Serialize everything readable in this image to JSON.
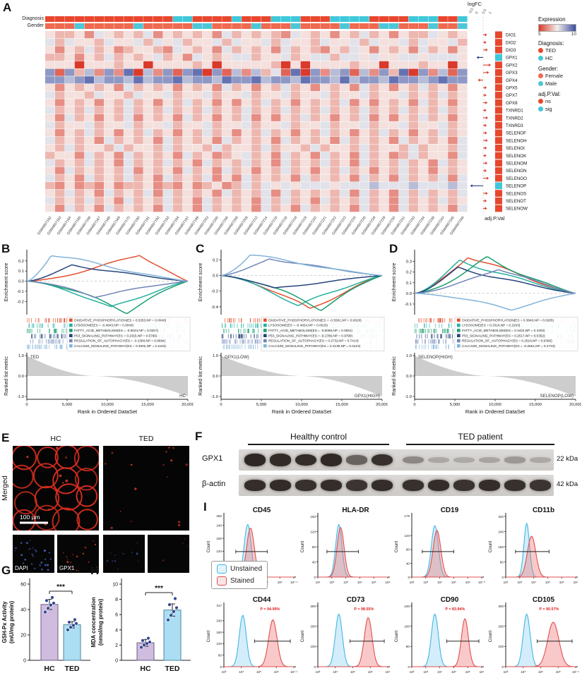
{
  "figure": {
    "labels": {
      "a": "A",
      "b": "B",
      "c": "C",
      "d": "D",
      "e": "E",
      "f": "F",
      "g": "G",
      "h": "H",
      "i": "I"
    }
  },
  "heatmap": {
    "annotation_rows": [
      "Diagnosis",
      "Gender"
    ],
    "samples": [
      "GSM4607162",
      "GSM4607163",
      "GSM4607164",
      "GSM4607165",
      "GSM4607166",
      "GSM4607167",
      "GSM4607168",
      "GSM4607169",
      "GSM4607170",
      "GSM4607190",
      "GSM4607191",
      "GSM4607192",
      "GSM4607193",
      "GSM4607194",
      "GSM4607197",
      "GSM4607199",
      "GSM4607203",
      "GSM4607205",
      "GSM4607206",
      "GSM4607208",
      "GSM4607209",
      "GSM4607213",
      "GSM4607214",
      "GSM4607215",
      "GSM4607216",
      "GSM4607218",
      "GSM4607219",
      "GSM4607220",
      "GSM4607221",
      "GSM4607222",
      "GSM4607223",
      "GSM4607225",
      "GSM4607226",
      "GSM4607228",
      "GSM4607229",
      "GSM4607230",
      "GSM4607231",
      "GSM4607233",
      "GSM4607234",
      "GSM4607238",
      "GSM4607243",
      "GSM4607245",
      "GSM4607246"
    ],
    "diagnosis": "TTTTTTTTTTTTTHHTTTTHTTTHHHTTTHHHHTTTTHHHTTH",
    "gender": "FFFMFFFFFMFFFFFMMFFFFMFFFMFFFFMFFFMMFFFMFFM",
    "genes": [
      "DIO1",
      "DIO2",
      "DIO3",
      "GPX1",
      "GPX2",
      "GPX3",
      "GPX4",
      "GPX5",
      "GPX7",
      "GPX8",
      "TXNRD1",
      "TXNRD2",
      "TXNRD3",
      "SELENOF",
      "SELENOH",
      "SELENOI",
      "SELENOK",
      "SELENOM",
      "SELENON",
      "SELENOO",
      "SELENOP",
      "SELENOS",
      "SELENOT",
      "SELENOW"
    ],
    "sig": [
      "ns",
      "ns",
      "ns",
      "sig",
      "ns",
      "ns",
      "ns",
      "ns",
      "ns",
      "ns",
      "ns",
      "ns",
      "ns",
      "ns",
      "ns",
      "ns",
      "ns",
      "ns",
      "ns",
      "ns",
      "sig",
      "ns",
      "ns",
      "ns"
    ],
    "matrix": [
      "5665745656475656574656567456575646575664565",
      "4645564554645465546455464556455464554645546",
      "5756465765567456574656574656756457565746575",
      "6657564656546574565446554654464454554454445",
      "5559555655955556595555569595555655955565595",
      "2826372719372821928373648192732837261927382",
      "2232132231322132231221322312231322312232122",
      "5756565746565756574657564657565746575646575",
      "4655645564554655465546554655465546554656465",
      "5756575646575646575756465756564757565746575",
      "4656465646564656465646564656465646564656465",
      "5746575647565746575647575646575647575646575",
      "4655465546554655465546554655465546554655465",
      "5756465756465756465756465756465756465756465",
      "4656574656574656574656574656574656574656574",
      "5646556465564655646556465564655646556465564",
      "6557465746565746576546574657465746576465574",
      "4656465746564657465646574656465746564657465",
      "5746565647565746574657564657564657564657565",
      "4657465646574656475746565746565746574656474",
      "6757675766576757657646454544454443444344434",
      "5646574656474656574656474656564746574646564",
      "4656465746564657465657464657465646574656465",
      "5746574656574657465657465746565746574656574"
    ],
    "logfc": [
      0.15,
      0.1,
      0.2,
      -0.35,
      0.45,
      0.3,
      -0.25,
      0.12,
      0.1,
      0.18,
      0.1,
      0.22,
      0.12,
      0.15,
      0.2,
      0.14,
      0.1,
      0.18,
      0.12,
      0.28,
      -0.85,
      0.2,
      0.12,
      0.15
    ],
    "logfc_title": "logFC",
    "logfc_ticks": [
      "-0.5",
      "0",
      "0.5",
      "1"
    ],
    "adj_label": "adj.P.Val",
    "colors": {
      "ted": "#e8472e",
      "hc": "#3fc8da",
      "female": "#ef6a50",
      "male": "#4cc7d8",
      "ns": "#e8472e",
      "sig": "#3fc8da"
    },
    "legend": {
      "expression_title": "Expression",
      "expression_ticks": [
        "5",
        "10"
      ],
      "diagnosis_title": "Diagnosis:",
      "diagnosis_items": [
        {
          "label": "TED"
        },
        {
          "label": "HC"
        }
      ],
      "gender_title": "Gender:",
      "gender_items": [
        {
          "label": "Female"
        },
        {
          "label": "Male"
        }
      ],
      "adj_title": "adj.P.Val:",
      "adj_items": [
        {
          "label": "ns"
        },
        {
          "label": "sig"
        }
      ]
    }
  },
  "gsea": {
    "ylabel_es": "Enrichment score",
    "ylabel_rank": "Ranked list metric",
    "xlabel": "Rank in Ordered DataSet",
    "xticks": [
      "0",
      "5,000",
      "10,000",
      "15,000",
      "20,000"
    ],
    "panels": [
      {
        "id": "B",
        "es_ticks": [
          "0.2",
          "0.1",
          "0.0",
          "-0.1",
          "-0.2"
        ],
        "es_range": [
          -0.33,
          0.31
        ],
        "rank_ticks": [
          "1.0",
          "0.0",
          "-1.0"
        ],
        "cross": 0.42,
        "pos_label": "TED",
        "neg_label": "HC",
        "series": [
          {
            "name": "OXIDATIVE_PHOSPHORYLATION",
            "es": "0.5353",
            "np": "0.0040",
            "color": "#e4502e",
            "peak": 0.27,
            "pos": 0.7
          },
          {
            "name": "LYSOSOME",
            "es": "-0.4843",
            "np": "0.0040",
            "color": "#24b0a0",
            "peak": -0.27,
            "pos": 0.52
          },
          {
            "name": "FATTY_ACID_METABOLISM",
            "es": "-0.5523",
            "np": "0.0257",
            "color": "#1a9e70",
            "peak": -0.3,
            "pos": 0.62
          },
          {
            "name": "P53_SIGNALING_PATHWAY",
            "es": "0.2315",
            "np": "0.5766",
            "color": "#27457d",
            "peak": 0.16,
            "pos": 0.28
          },
          {
            "name": "REGULATION_OF_AUTOPHAGY",
            "es": "-0.2369",
            "np": "0.8694",
            "color": "#7186b8",
            "peak": -0.15,
            "pos": 0.42
          },
          {
            "name": "CALCIUM_SIGNALING_PATHWAY",
            "es": "0.3002",
            "np": "0.1193",
            "color": "#82b4d8",
            "peak": 0.27,
            "pos": 0.15
          }
        ]
      },
      {
        "id": "C",
        "es_ticks": [
          "0.2",
          "0.0",
          "-0.2",
          "-0.4"
        ],
        "es_range": [
          -0.5,
          0.33
        ],
        "rank_ticks": [
          "1.0",
          "0.0",
          "-1.0"
        ],
        "cross": 0.5,
        "pos_label": "GPX1(LOW)",
        "neg_label": "GPX1(HIGH)",
        "series": [
          {
            "name": "OXIDATIVE_PHOSPHORYLATION",
            "es": "-0.5581",
            "np": "0.0020",
            "color": "#e4502e",
            "peak": -0.44,
            "pos": 0.55
          },
          {
            "name": "LYSOSOME",
            "es": "-0.4824",
            "np": "0.0020",
            "color": "#24b0a0",
            "peak": -0.39,
            "pos": 0.48
          },
          {
            "name": "FATTY_ACID_METABOLISM",
            "es": "-0.5069",
            "np": "0.0591",
            "color": "#1a9e70",
            "peak": -0.42,
            "pos": 0.62
          },
          {
            "name": "P53_SIGNALING_PATHWAY",
            "es": "-0.1786",
            "np": "0.9790",
            "color": "#27457d",
            "peak": -0.17,
            "pos": 0.33
          },
          {
            "name": "REGULATION_OF_AUTOPHAGY",
            "es": "0.2732",
            "np": "0.7414",
            "color": "#7186b8",
            "peak": 0.22,
            "pos": 0.3
          },
          {
            "name": "CALCIUM_SIGNALING_PATHWAY",
            "es": "0.3139",
            "np": "0.0423",
            "color": "#82b4d8",
            "peak": 0.27,
            "pos": 0.18
          }
        ]
      },
      {
        "id": "D",
        "es_ticks": [
          "0.3",
          "0.2",
          "0.1",
          "0.0",
          "-0.1"
        ],
        "es_range": [
          -0.2,
          0.41
        ],
        "rank_ticks": [
          "1.0",
          "0.0",
          "-1.0"
        ],
        "cross": 0.45,
        "pos_label": "SELENOP(HIGH)",
        "neg_label": "SELENOP(LOW)",
        "series": [
          {
            "name": "OXIDATIVE_PHOSPHORYLATION",
            "es": "0.3840",
            "np": "0.0205",
            "color": "#e4502e",
            "peak": 0.36,
            "pos": 0.33
          },
          {
            "name": "LYSOSOME",
            "es": "0.3318",
            "np": "0.2263",
            "color": "#24b0a0",
            "peak": 0.31,
            "pos": 0.28
          },
          {
            "name": "FATTY_ACID_METABOLISM",
            "es": "0.3424",
            "np": "0.3302",
            "color": "#1a9e70",
            "peak": 0.33,
            "pos": 0.45
          },
          {
            "name": "P53_SIGNALING_PATHWAY",
            "es": "0.2517",
            "np": "0.5352",
            "color": "#27457d",
            "peak": 0.24,
            "pos": 0.27
          },
          {
            "name": "REGULATION_OF_AUTOPHAGY",
            "es": "0.2518",
            "np": "0.6366",
            "color": "#7186b8",
            "peak": 0.24,
            "pos": 0.52
          },
          {
            "name": "CALCIUM_SIGNALING_PATHWAY",
            "es": "-0.2651",
            "np": "0.2733",
            "color": "#82b4d8",
            "peak": -0.15,
            "pos": 0.6
          }
        ]
      }
    ]
  },
  "microscopy": {
    "col_labels": [
      "HC",
      "TED"
    ],
    "row_label": "Merged",
    "scale_bar": "100 µm",
    "sub_labels": [
      "DAPI",
      "GPX1"
    ]
  },
  "western": {
    "group_labels": [
      "Healthy control",
      "TED patient"
    ],
    "rows": [
      {
        "label": "GPX1",
        "kda": "22 kDa",
        "bands": [
          0.95,
          0.92,
          0.9,
          0.93,
          0.55,
          0.88,
          0.3,
          0.1,
          0.08,
          0.12,
          0.2,
          0.1
        ]
      },
      {
        "label": "β-actin",
        "kda": "42 kDa",
        "bands": [
          0.9,
          0.92,
          0.88,
          0.9,
          0.86,
          0.9,
          0.88,
          0.9,
          0.87,
          0.9,
          0.88,
          0.86
        ]
      }
    ]
  },
  "bar_g": {
    "ylabel1": "GSH-Px Activity",
    "ylabel2": "(mU/mg protein)",
    "cats": [
      "HC",
      "TED"
    ],
    "values": [
      44,
      28
    ],
    "errors": [
      4,
      2.5
    ],
    "points": [
      [
        38,
        41,
        43.5,
        45,
        47,
        49.5
      ],
      [
        24,
        26,
        27.5,
        29,
        30,
        32
      ]
    ],
    "yticks": [
      "0",
      "20",
      "40",
      "60"
    ],
    "ymax": 60,
    "sig": "***",
    "fills": [
      "#cfbcdf",
      "#abdef3"
    ],
    "strokes": [
      "#6e5d85",
      "#4c87a0"
    ]
  },
  "bar_h": {
    "ylabel1": "MDA concentration",
    "ylabel2": "(nmol/mg protein)",
    "cats": [
      "HC",
      "TED"
    ],
    "values": [
      2.3,
      6.6
    ],
    "errors": [
      0.45,
      0.8
    ],
    "points": [
      [
        1.7,
        2.0,
        2.2,
        2.4,
        2.6,
        2.9
      ],
      [
        5.3,
        5.9,
        6.4,
        6.9,
        7.3,
        8.1
      ]
    ],
    "yticks": [
      "0",
      "2",
      "4",
      "6",
      "8",
      "10"
    ],
    "ymax": 10,
    "sig": "***",
    "fills": [
      "#cfbcdf",
      "#abdef3"
    ],
    "strokes": [
      "#6e5d85",
      "#4c87a0"
    ]
  },
  "flow": {
    "ylabel": "Count",
    "legend": {
      "items": [
        {
          "label": "Unstained",
          "color": "#41b6e6"
        },
        {
          "label": "Stained",
          "color": "#e04f4f"
        }
      ]
    },
    "charts": [
      {
        "title": "CD45",
        "ymax": "282",
        "yticks": [
          "240",
          "180",
          "120",
          "60",
          "0"
        ],
        "xticks": [
          "10²",
          "10³",
          "10⁴",
          "10⁵",
          "10⁶",
          "10⁷·¹"
        ],
        "blue": {
          "mu": 0.34,
          "sg": 0.05,
          "h": 0.9
        },
        "red": {
          "mu": 0.38,
          "sg": 0.055,
          "h": 0.84
        },
        "gate": [
          0.17,
          0.62
        ],
        "p": ""
      },
      {
        "title": "HLA-DR",
        "ymax": "",
        "yticks": [
          "160",
          "120",
          "80",
          "40",
          "0"
        ],
        "xticks": [
          "10¹",
          "10²",
          "10³",
          "10⁴",
          "10⁵",
          "10⁶"
        ],
        "blue": {
          "mu": 0.3,
          "sg": 0.045,
          "h": 0.9
        },
        "red": {
          "mu": 0.325,
          "sg": 0.05,
          "h": 0.85
        },
        "gate": [
          0.13,
          0.58
        ],
        "p": ""
      },
      {
        "title": "CD19",
        "ymax": "176",
        "yticks": [
          "120",
          "80",
          "40",
          "0"
        ],
        "xticks": [
          "10²",
          "10³",
          "10⁴",
          "10⁵",
          "10⁶",
          "10⁷·²"
        ],
        "blue": {
          "mu": 0.33,
          "sg": 0.05,
          "h": 0.88
        },
        "red": {
          "mu": 0.36,
          "sg": 0.055,
          "h": 0.8
        },
        "gate": [
          0.15,
          0.6
        ],
        "p": ""
      },
      {
        "title": "CD11b",
        "ymax": "",
        "yticks": [
          "320",
          "240",
          "160",
          "80",
          "0"
        ],
        "xticks": [
          "10²",
          "10³",
          "10⁴",
          "10⁵",
          "10⁶",
          "10⁷"
        ],
        "blue": {
          "mu": 0.3,
          "sg": 0.04,
          "h": 0.92
        },
        "red": {
          "mu": 0.37,
          "sg": 0.06,
          "h": 0.7
        },
        "gate": [
          0.14,
          0.62
        ],
        "p": ""
      },
      {
        "title": "CD44",
        "ymax": "317",
        "yticks": [
          "240",
          "180",
          "120",
          "60",
          "0"
        ],
        "xticks": [
          "10³",
          "10⁴",
          "10⁵",
          "10⁶",
          "10⁷·¹"
        ],
        "blue": {
          "mu": 0.27,
          "sg": 0.05,
          "h": 0.88
        },
        "red": {
          "mu": 0.7,
          "sg": 0.06,
          "h": 0.8
        },
        "gate": [
          0.44,
          0.95
        ],
        "p": "P = 94.99%",
        "px": 0.66
      },
      {
        "title": "CD73",
        "ymax": "",
        "yticks": [
          "300",
          "200",
          "100",
          "0"
        ],
        "xticks": [
          "10³",
          "10⁴",
          "10⁵",
          "10⁶",
          "10⁷"
        ],
        "blue": {
          "mu": 0.3,
          "sg": 0.05,
          "h": 0.9
        },
        "red": {
          "mu": 0.72,
          "sg": 0.055,
          "h": 0.84
        },
        "gate": [
          0.46,
          0.95
        ],
        "p": "P = 98.55%",
        "px": 0.66
      },
      {
        "title": "CD90",
        "ymax": "",
        "yticks": [
          "240",
          "160",
          "80",
          "0"
        ],
        "xticks": [
          "10²",
          "10³",
          "10⁴",
          "10⁵",
          "10⁶",
          "10⁷"
        ],
        "blue": {
          "mu": 0.33,
          "sg": 0.05,
          "h": 0.9
        },
        "red": {
          "mu": 0.76,
          "sg": 0.05,
          "h": 0.82
        },
        "gate": [
          0.5,
          0.96
        ],
        "p": "P = 83.94%",
        "px": 0.62
      },
      {
        "title": "CD105",
        "ymax": "",
        "yticks": [
          "300",
          "200",
          "100",
          "0"
        ],
        "xticks": [
          "10³",
          "10⁴",
          "10⁵",
          "10⁶",
          "10⁷·¹"
        ],
        "blue": {
          "mu": 0.3,
          "sg": 0.05,
          "h": 0.9
        },
        "red": {
          "mu": 0.68,
          "sg": 0.08,
          "h": 0.76
        },
        "gate": [
          0.45,
          0.95
        ],
        "p": "P = 90.57%",
        "px": 0.62
      }
    ]
  }
}
